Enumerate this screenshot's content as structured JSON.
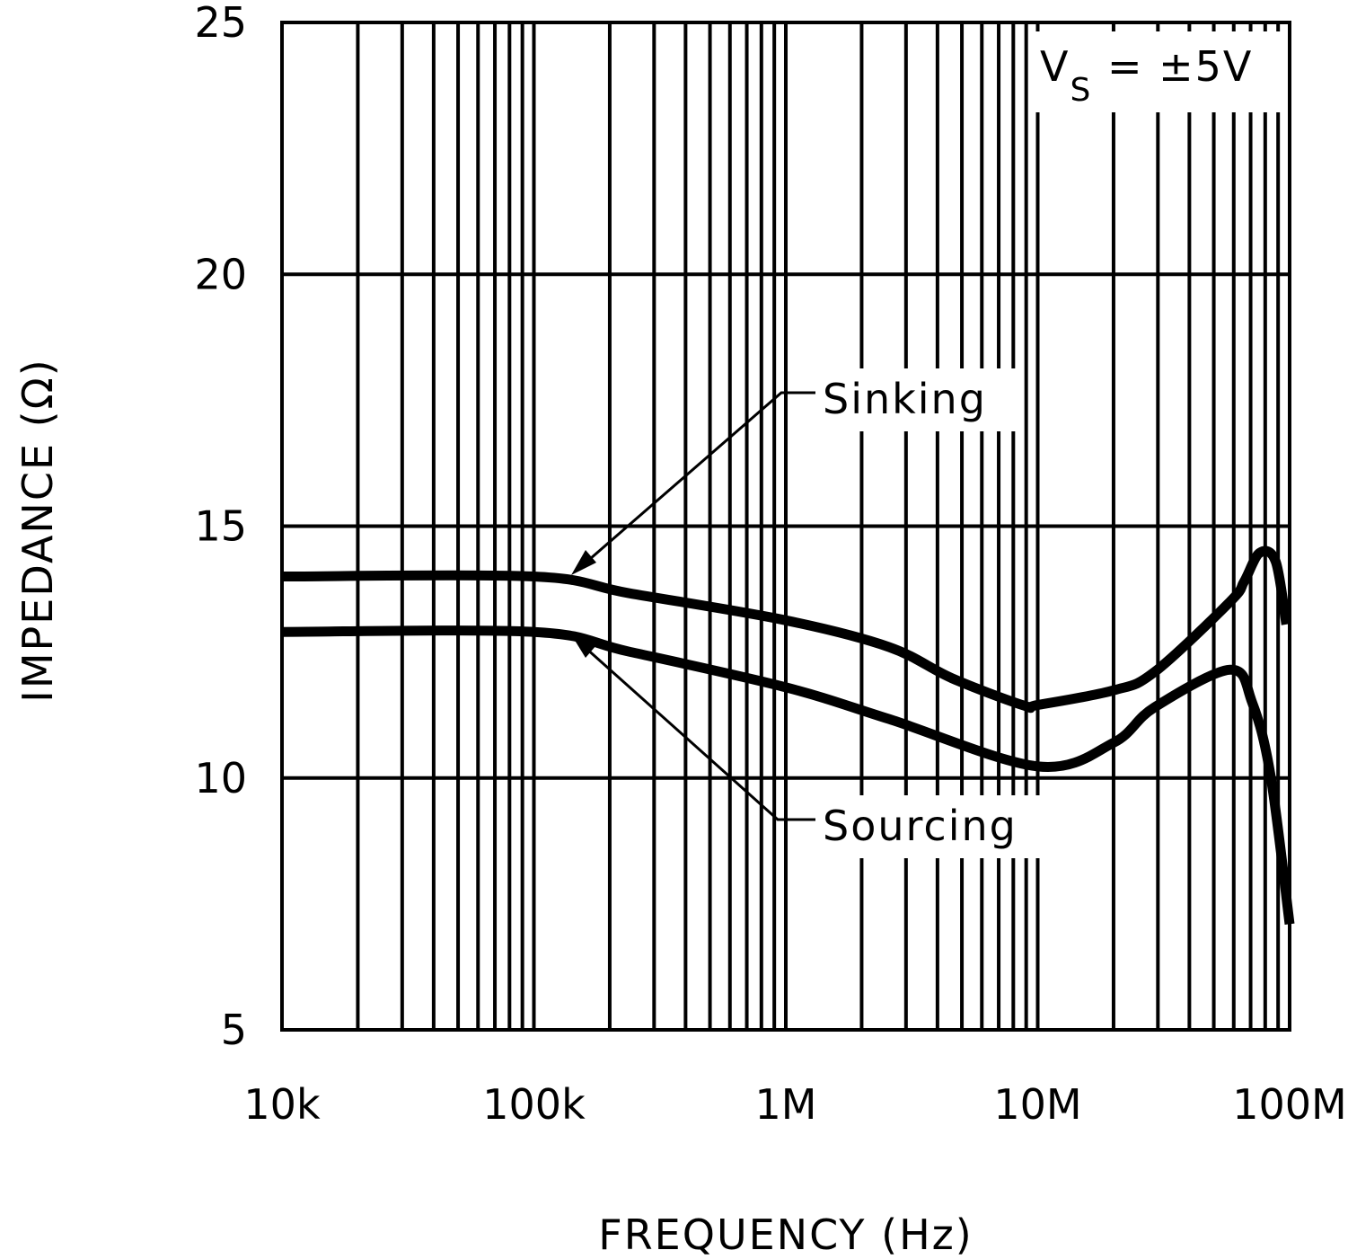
{
  "chart_data": {
    "type": "line",
    "title": "",
    "xlabel": "FREQUENCY (Hz)",
    "ylabel": "IMPEDANCE (Ω)",
    "x_scale": "log",
    "xlim": [
      10000,
      100000000
    ],
    "ylim": [
      5,
      25
    ],
    "grid": true,
    "x_ticks": [
      {
        "value": 10000,
        "label": "10k"
      },
      {
        "value": 100000,
        "label": "100k"
      },
      {
        "value": 1000000,
        "label": "1M"
      },
      {
        "value": 10000000,
        "label": "10M"
      },
      {
        "value": 100000000,
        "label": "100M"
      }
    ],
    "y_ticks": [
      {
        "value": 5,
        "label": "5"
      },
      {
        "value": 10,
        "label": "10"
      },
      {
        "value": 15,
        "label": "15"
      },
      {
        "value": 20,
        "label": "20"
      },
      {
        "value": 25,
        "label": "25"
      }
    ],
    "annotations": {
      "condition_main": "V",
      "condition_sub": "S",
      "condition_rest": " = ±5V"
    },
    "series": [
      {
        "name": "Sinking",
        "x": [
          10000,
          100000,
          238000,
          1000000,
          2570000,
          4570000,
          8800000,
          10000000,
          20000000,
          29000000,
          58000000,
          66000000,
          76000000,
          88000000,
          97000000
        ],
        "y": [
          14.0,
          14.0,
          13.67,
          13.13,
          12.6,
          11.98,
          11.44,
          11.45,
          11.74,
          12.1,
          13.5,
          13.9,
          14.47,
          14.3,
          13.05
        ]
      },
      {
        "name": "Sourcing",
        "x": [
          10000,
          100000,
          238000,
          1000000,
          2570000,
          10000000,
          20000000,
          29000000,
          58000000,
          71000000,
          84000000,
          100000000
        ],
        "y": [
          12.9,
          12.9,
          12.51,
          11.8,
          11.17,
          10.23,
          10.7,
          11.4,
          12.15,
          11.5,
          10.05,
          7.1
        ]
      }
    ]
  }
}
